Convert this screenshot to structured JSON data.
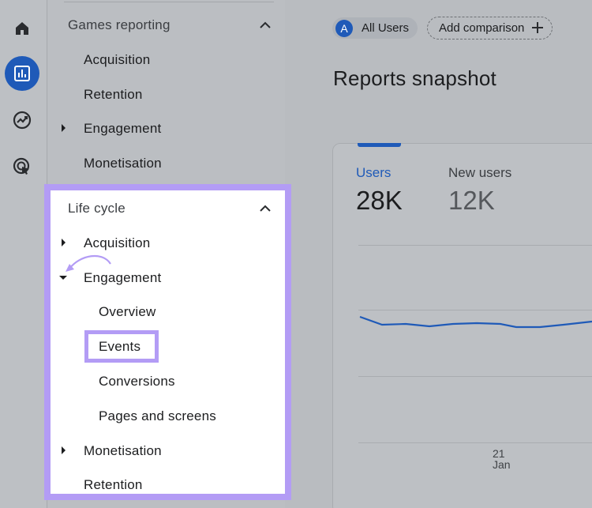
{
  "sidebar": {
    "icons": [
      "home-icon",
      "reports-icon",
      "explore-icon",
      "advertising-icon"
    ]
  },
  "nav": {
    "games_reporting": {
      "title": "Games reporting",
      "items": [
        "Acquisition",
        "Retention",
        "Engagement",
        "Monetisation"
      ]
    },
    "life_cycle": {
      "title": "Life cycle",
      "acquisition": "Acquisition",
      "engagement": "Engagement",
      "engagement_children": [
        "Overview",
        "Events",
        "Conversions",
        "Pages and screens"
      ],
      "monetisation": "Monetisation",
      "retention": "Retention"
    }
  },
  "header": {
    "segment_avatar": "A",
    "segment_label": "All Users",
    "add_comparison": "Add comparison"
  },
  "main": {
    "title": "Reports snapshot",
    "metrics": [
      {
        "label": "Users",
        "value": "28K"
      },
      {
        "label": "New users",
        "value": "12K"
      }
    ],
    "axis": {
      "day": "21",
      "month": "Jan"
    }
  },
  "colors": {
    "accent": "#1f5ab8",
    "highlight": "#b39cf5"
  }
}
